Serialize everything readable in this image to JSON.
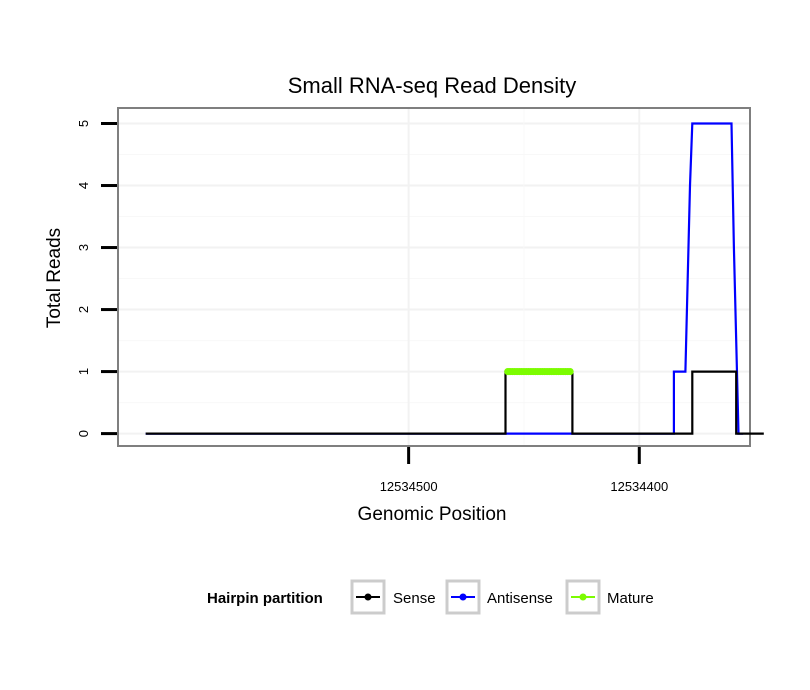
{
  "chart_data": {
    "type": "line",
    "title": "Small RNA-seq Read Density",
    "xlabel": "Genomic Position",
    "ylabel": "Total Reads",
    "x_reversed": true,
    "xlim": [
      12534626,
      12534352
    ],
    "ylim": [
      -0.2,
      5.25
    ],
    "x_ticks": [
      12534500,
      12534400
    ],
    "x_tick_labels": [
      "12534500",
      "12534400"
    ],
    "y_ticks": [
      0,
      1,
      2,
      3,
      4,
      5
    ],
    "y_tick_labels": [
      "0",
      "1",
      "2",
      "3",
      "4",
      "5"
    ],
    "grid": true,
    "legend": {
      "title": "Hairpin partition",
      "position": "bottom",
      "entries": [
        "Sense",
        "Antisense",
        "Mature"
      ]
    },
    "series": [
      {
        "name": "Sense",
        "color": "#000000",
        "x": [
          12534614,
          12534458,
          12534458,
          12534429,
          12534429,
          12534385,
          12534385,
          12534377,
          12534377,
          12534358,
          12534358,
          12534346
        ],
        "y": [
          0,
          0,
          1,
          1,
          0,
          0,
          0,
          0,
          1,
          1,
          0,
          0
        ]
      },
      {
        "name": "Antisense",
        "color": "#0000ff",
        "x": [
          12534614,
          12534385,
          12534385,
          12534380,
          12534378,
          12534377,
          12534360,
          12534359,
          12534357,
          12534355
        ],
        "y": [
          0,
          0,
          1,
          1,
          4,
          5,
          5,
          3,
          0,
          0
        ]
      },
      {
        "name": "Mature",
        "color": "#7cfc00",
        "x_start": 12534457,
        "x_end": 12534430,
        "y": 1,
        "marker": "point"
      }
    ]
  }
}
